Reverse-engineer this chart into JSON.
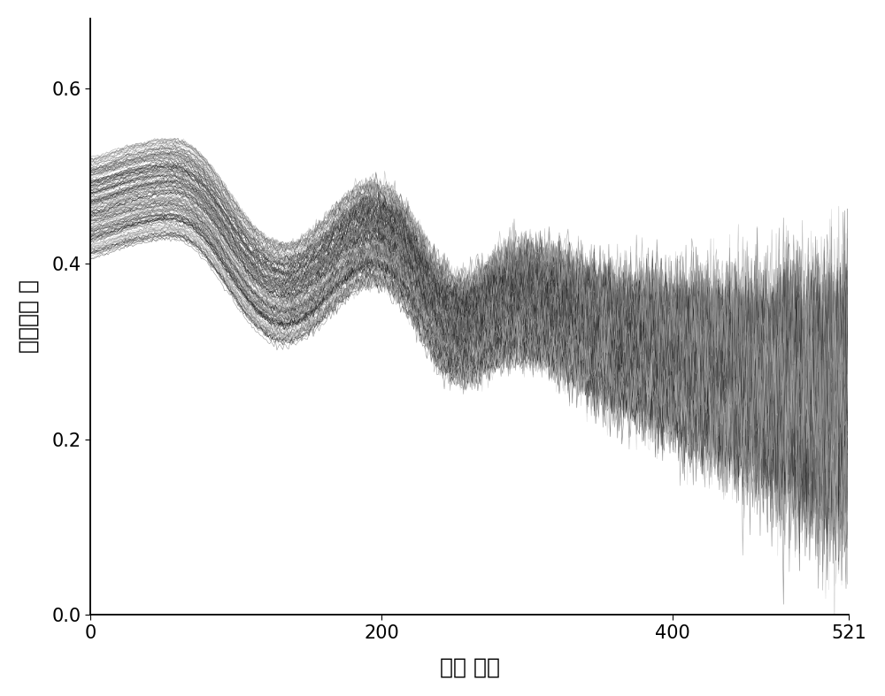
{
  "xlabel": "小波 系数",
  "ylabel": "重构小波 値",
  "xlim": [
    0,
    521
  ],
  "ylim": [
    0.0,
    0.68
  ],
  "yticks": [
    0.0,
    0.2,
    0.4,
    0.6
  ],
  "xticks": [
    0,
    200,
    400,
    521
  ],
  "n_curves": 200,
  "n_points": 521,
  "background_color": "#ffffff",
  "line_alpha": 0.55,
  "linewidth": 0.4,
  "seed": 42
}
